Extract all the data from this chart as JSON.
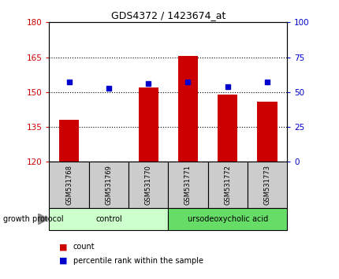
{
  "title": "GDS4372 / 1423674_at",
  "samples": [
    "GSM531768",
    "GSM531769",
    "GSM531770",
    "GSM531771",
    "GSM531772",
    "GSM531773"
  ],
  "count_values": [
    138,
    120.2,
    152,
    165.5,
    149,
    146
  ],
  "percentile_values": [
    57,
    53,
    56,
    57,
    54,
    57
  ],
  "ylim_left": [
    120,
    180
  ],
  "ylim_right": [
    0,
    100
  ],
  "yticks_left": [
    120,
    135,
    150,
    165,
    180
  ],
  "yticks_right": [
    0,
    25,
    50,
    75,
    100
  ],
  "bar_color": "#cc0000",
  "dot_color": "#0000cc",
  "groups": [
    {
      "label": "control",
      "span": [
        0,
        3
      ],
      "color": "#ccffcc"
    },
    {
      "label": "ursodeoxycholic acid",
      "span": [
        3,
        6
      ],
      "color": "#66dd66"
    }
  ],
  "group_label": "growth protocol",
  "legend_count": "count",
  "legend_percentile": "percentile rank within the sample",
  "axis_color_left": "#cc0000",
  "axis_color_right": "#0000cc",
  "sample_box_color": "#cccccc",
  "bar_width": 0.5
}
